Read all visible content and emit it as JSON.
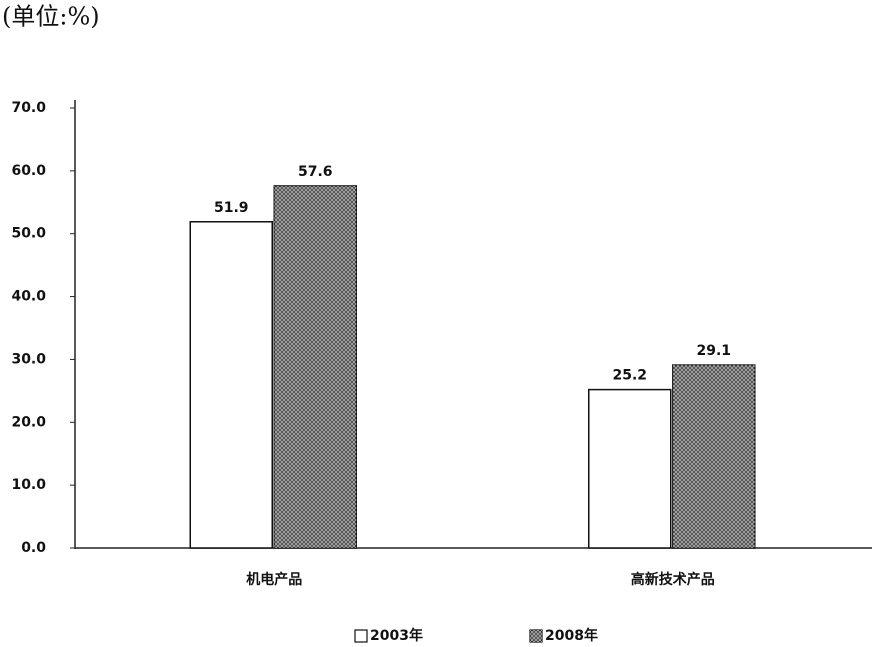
{
  "chart_data": {
    "type": "bar",
    "title": "(单位:%)",
    "categories": [
      "机电产品",
      "高新技术产品"
    ],
    "series": [
      {
        "name": "2003年",
        "color": "#ffffff",
        "values": [
          51.9,
          25.2
        ]
      },
      {
        "name": "2008年",
        "color": "#4a4a4a",
        "values": [
          57.6,
          29.1
        ]
      }
    ],
    "ylim": [
      0,
      70
    ],
    "yticks": [
      {
        "value": 0,
        "label": "0.0"
      },
      {
        "value": 10,
        "label": "10.0"
      },
      {
        "value": 20,
        "label": "20.0"
      },
      {
        "value": 30,
        "label": "30.0"
      },
      {
        "value": 40,
        "label": "40.0"
      },
      {
        "value": 50,
        "label": "50.0"
      },
      {
        "value": 60,
        "label": "60.0"
      },
      {
        "value": 70,
        "label": "70.0"
      }
    ],
    "grid": false,
    "legend": "bottom"
  }
}
